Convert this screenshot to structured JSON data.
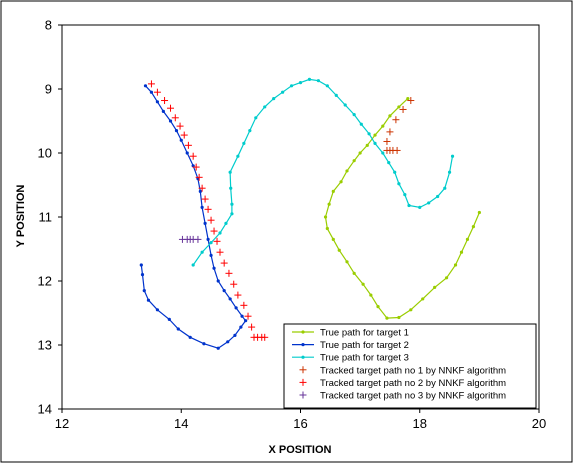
{
  "chart_data": {
    "type": "line",
    "xlabel": "X POSITION",
    "ylabel": "Y POSITION",
    "xlim": [
      12,
      20
    ],
    "ylim": [
      8,
      14
    ],
    "y_inverted": true,
    "xticks": [
      12,
      14,
      16,
      18,
      20
    ],
    "yticks": [
      8,
      9,
      10,
      11,
      12,
      13,
      14
    ],
    "grid": false,
    "legend_position": "bottom-right",
    "series": [
      {
        "name": "True path for target 1",
        "color": "#9acd00",
        "marker": "dot",
        "points": [
          [
            17.8,
            9.15
          ],
          [
            17.65,
            9.28
          ],
          [
            17.5,
            9.42
          ],
          [
            17.38,
            9.58
          ],
          [
            17.25,
            9.72
          ],
          [
            17.12,
            9.88
          ],
          [
            17.0,
            10.0
          ],
          [
            16.9,
            10.12
          ],
          [
            16.78,
            10.28
          ],
          [
            16.68,
            10.45
          ],
          [
            16.55,
            10.6
          ],
          [
            16.48,
            10.8
          ],
          [
            16.42,
            11.0
          ],
          [
            16.45,
            11.18
          ],
          [
            16.55,
            11.35
          ],
          [
            16.65,
            11.52
          ],
          [
            16.78,
            11.7
          ],
          [
            16.9,
            11.88
          ],
          [
            17.05,
            12.05
          ],
          [
            17.18,
            12.22
          ],
          [
            17.3,
            12.4
          ],
          [
            17.45,
            12.58
          ],
          [
            17.65,
            12.57
          ],
          [
            17.85,
            12.45
          ],
          [
            18.05,
            12.28
          ],
          [
            18.25,
            12.1
          ],
          [
            18.45,
            11.95
          ],
          [
            18.6,
            11.75
          ],
          [
            18.7,
            11.55
          ],
          [
            18.8,
            11.35
          ],
          [
            18.9,
            11.15
          ],
          [
            19.0,
            10.93
          ]
        ]
      },
      {
        "name": "True path for target 2",
        "color": "#0033cc",
        "marker": "dot",
        "points": [
          [
            13.4,
            8.95
          ],
          [
            13.5,
            9.05
          ],
          [
            13.6,
            9.2
          ],
          [
            13.7,
            9.35
          ],
          [
            13.82,
            9.5
          ],
          [
            13.92,
            9.65
          ],
          [
            14.0,
            9.8
          ],
          [
            14.1,
            10.0
          ],
          [
            14.2,
            10.2
          ],
          [
            14.28,
            10.4
          ],
          [
            14.32,
            10.6
          ],
          [
            14.35,
            10.85
          ],
          [
            14.4,
            11.1
          ],
          [
            14.45,
            11.35
          ],
          [
            14.5,
            11.6
          ],
          [
            14.55,
            11.8
          ],
          [
            14.62,
            12.0
          ],
          [
            14.72,
            12.15
          ],
          [
            14.82,
            12.28
          ],
          [
            14.92,
            12.42
          ],
          [
            15.02,
            12.55
          ],
          [
            15.08,
            12.62
          ],
          [
            15.0,
            12.72
          ],
          [
            14.9,
            12.85
          ],
          [
            14.78,
            12.95
          ],
          [
            14.62,
            13.05
          ],
          [
            14.38,
            12.98
          ],
          [
            14.15,
            12.88
          ],
          [
            13.95,
            12.75
          ],
          [
            13.8,
            12.6
          ],
          [
            13.6,
            12.45
          ],
          [
            13.45,
            12.3
          ],
          [
            13.38,
            12.15
          ],
          [
            13.35,
            11.9
          ],
          [
            13.33,
            11.75
          ]
        ]
      },
      {
        "name": "True path for target 3",
        "color": "#00cccc",
        "marker": "dot",
        "points": [
          [
            14.2,
            11.75
          ],
          [
            14.35,
            11.55
          ],
          [
            14.5,
            11.4
          ],
          [
            14.65,
            11.25
          ],
          [
            14.75,
            11.1
          ],
          [
            14.85,
            10.95
          ],
          [
            14.85,
            10.8
          ],
          [
            14.83,
            10.55
          ],
          [
            14.82,
            10.3
          ],
          [
            14.95,
            10.05
          ],
          [
            15.05,
            9.85
          ],
          [
            15.15,
            9.65
          ],
          [
            15.25,
            9.45
          ],
          [
            15.4,
            9.28
          ],
          [
            15.55,
            9.15
          ],
          [
            15.7,
            9.05
          ],
          [
            15.85,
            8.95
          ],
          [
            16.0,
            8.9
          ],
          [
            16.15,
            8.85
          ],
          [
            16.3,
            8.87
          ],
          [
            16.45,
            8.95
          ],
          [
            16.6,
            9.1
          ],
          [
            16.75,
            9.25
          ],
          [
            16.9,
            9.4
          ],
          [
            17.02,
            9.55
          ],
          [
            17.15,
            9.7
          ],
          [
            17.25,
            9.85
          ],
          [
            17.38,
            10.0
          ],
          [
            17.48,
            10.15
          ],
          [
            17.58,
            10.3
          ],
          [
            17.65,
            10.48
          ],
          [
            17.75,
            10.65
          ],
          [
            17.82,
            10.82
          ],
          [
            18.0,
            10.85
          ],
          [
            18.15,
            10.78
          ],
          [
            18.3,
            10.68
          ],
          [
            18.42,
            10.55
          ],
          [
            18.5,
            10.3
          ],
          [
            18.55,
            10.05
          ]
        ]
      },
      {
        "name": "Tracked target path no 1 by  NNKF algorithm",
        "color": "#cc3300",
        "marker": "plus",
        "points": [
          [
            17.85,
            9.18
          ],
          [
            17.72,
            9.32
          ],
          [
            17.6,
            9.48
          ],
          [
            17.5,
            9.67
          ],
          [
            17.45,
            9.82
          ],
          [
            17.45,
            9.96
          ],
          [
            17.5,
            9.96
          ],
          [
            17.55,
            9.96
          ],
          [
            17.62,
            9.96
          ]
        ]
      },
      {
        "name": "Tracked target path no 2 by  NNKF algorithm",
        "color": "#ff0000",
        "marker": "plus",
        "points": [
          [
            13.5,
            8.92
          ],
          [
            13.6,
            9.05
          ],
          [
            13.72,
            9.18
          ],
          [
            13.82,
            9.3
          ],
          [
            13.9,
            9.45
          ],
          [
            13.98,
            9.58
          ],
          [
            14.05,
            9.72
          ],
          [
            14.12,
            9.88
          ],
          [
            14.2,
            10.05
          ],
          [
            14.25,
            10.22
          ],
          [
            14.3,
            10.38
          ],
          [
            14.35,
            10.55
          ],
          [
            14.4,
            10.72
          ],
          [
            14.45,
            10.88
          ],
          [
            14.5,
            11.05
          ],
          [
            14.55,
            11.22
          ],
          [
            14.6,
            11.38
          ],
          [
            14.65,
            11.55
          ],
          [
            14.72,
            11.72
          ],
          [
            14.8,
            11.88
          ],
          [
            14.88,
            12.05
          ],
          [
            14.95,
            12.22
          ],
          [
            15.05,
            12.38
          ],
          [
            15.12,
            12.55
          ],
          [
            15.18,
            12.72
          ],
          [
            15.22,
            12.88
          ],
          [
            15.28,
            12.88
          ],
          [
            15.35,
            12.88
          ],
          [
            15.4,
            12.88
          ]
        ]
      },
      {
        "name": "Tracked target path no 3 by  NNKF algorithm",
        "color": "#663399",
        "marker": "plus",
        "points": [
          [
            14.02,
            11.35
          ],
          [
            14.1,
            11.35
          ],
          [
            14.15,
            11.35
          ],
          [
            14.2,
            11.35
          ],
          [
            14.28,
            11.35
          ]
        ]
      }
    ]
  }
}
